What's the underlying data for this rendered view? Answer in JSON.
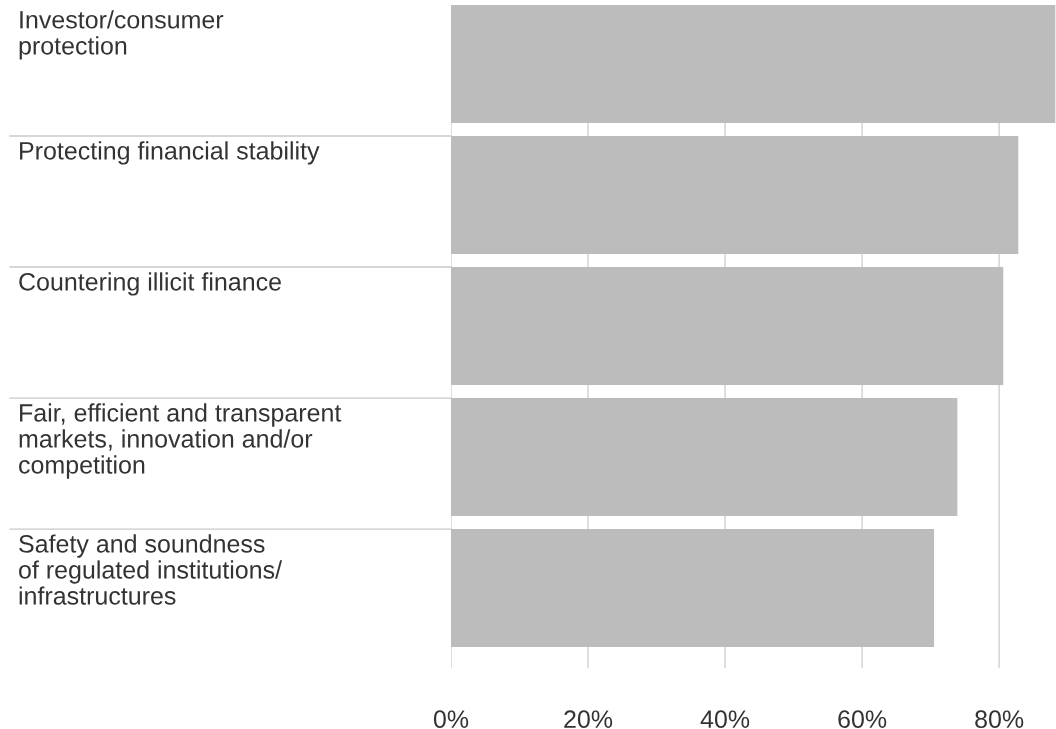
{
  "chart_data": {
    "type": "bar",
    "orientation": "horizontal",
    "categories": [
      "Investor/consumer\nprotection",
      "Protecting financial stability",
      "Countering illicit finance",
      "Fair, efficient and transparent\nmarkets, innovation and/or\ncompetition",
      "Safety and soundness\nof regulated institutions/\ninfrastructures"
    ],
    "values": [
      88.2,
      82.8,
      80.6,
      73.9,
      70.5
    ],
    "color": "#bcbcbc",
    "xlim": [
      0,
      88.3
    ],
    "xticks": [
      {
        "value": 0,
        "label": "0%"
      },
      {
        "value": 20,
        "label": "20%"
      },
      {
        "value": 40,
        "label": "40%"
      },
      {
        "value": 60,
        "label": "60%"
      },
      {
        "value": 80,
        "label": "80%"
      }
    ],
    "grid": "x"
  }
}
